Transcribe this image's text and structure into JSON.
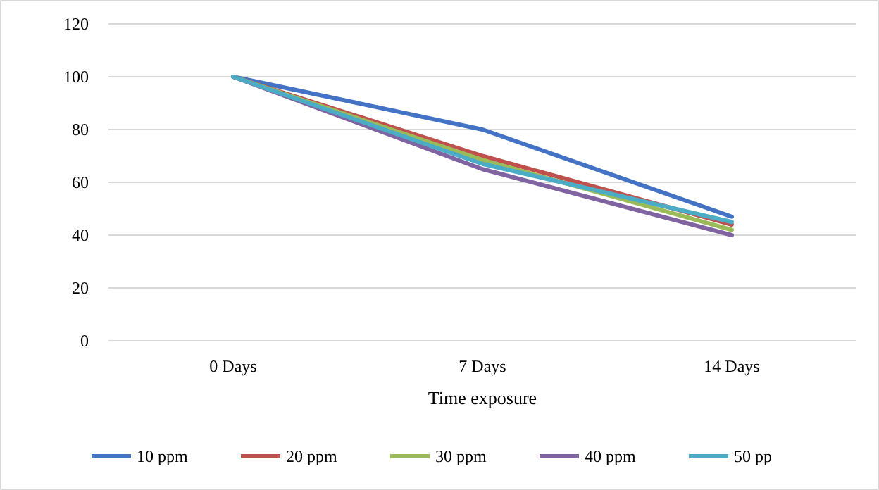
{
  "chart_data": {
    "type": "line",
    "xlabel": "Time exposure",
    "categories": [
      "0 Days",
      "7 Days",
      "14 Days"
    ],
    "series": [
      {
        "name": "10 ppm",
        "color": "#4472c4",
        "values": [
          100,
          80,
          47
        ]
      },
      {
        "name": "20 ppm",
        "color": "#c0504d",
        "values": [
          100,
          70,
          44
        ]
      },
      {
        "name": "30 ppm",
        "color": "#9bbb59",
        "values": [
          100,
          68.5,
          42
        ]
      },
      {
        "name": "40 ppm",
        "color": "#8064a2",
        "values": [
          100,
          65,
          40
        ]
      },
      {
        "name": "50 pp",
        "color": "#4bacc6",
        "values": [
          100,
          67,
          45
        ]
      }
    ],
    "ylim": [
      0,
      120
    ],
    "yticks": [
      0,
      20,
      40,
      60,
      80,
      100,
      120
    ],
    "grid": "y",
    "legend": "bottom",
    "marker": "none",
    "line_style": "solid"
  }
}
